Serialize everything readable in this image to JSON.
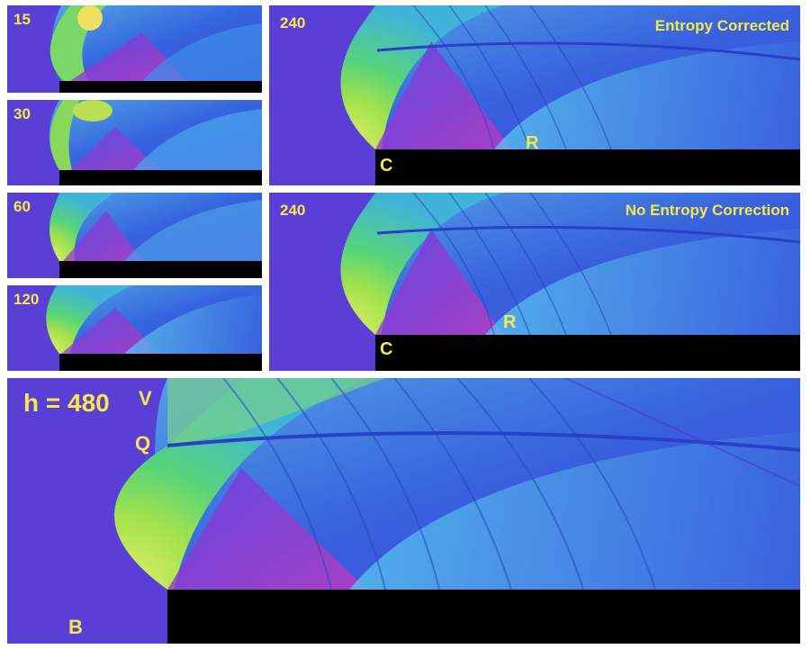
{
  "panels": {
    "p15": {
      "label": "15"
    },
    "p30": {
      "label": "30"
    },
    "p60": {
      "label": "60"
    },
    "p120": {
      "label": "120"
    },
    "top_right": {
      "label": "240",
      "title": "Entropy Corrected",
      "point_c": "C",
      "point_r": "R"
    },
    "mid_right": {
      "label": "240",
      "title": "No Entropy Correction",
      "point_c": "C",
      "point_r": "R"
    },
    "bottom": {
      "label": "h = 480",
      "point_v": "V",
      "point_q": "Q",
      "point_b": "B"
    }
  },
  "colors": {
    "background": "#5a3fd6",
    "step": "#000000",
    "label": "#f5e84a",
    "fan_green": "#9ee04a",
    "fan_cyan": "#4fc3e8",
    "fan_magenta": "#b236c8",
    "flow_blue": "#3a5ee0"
  }
}
